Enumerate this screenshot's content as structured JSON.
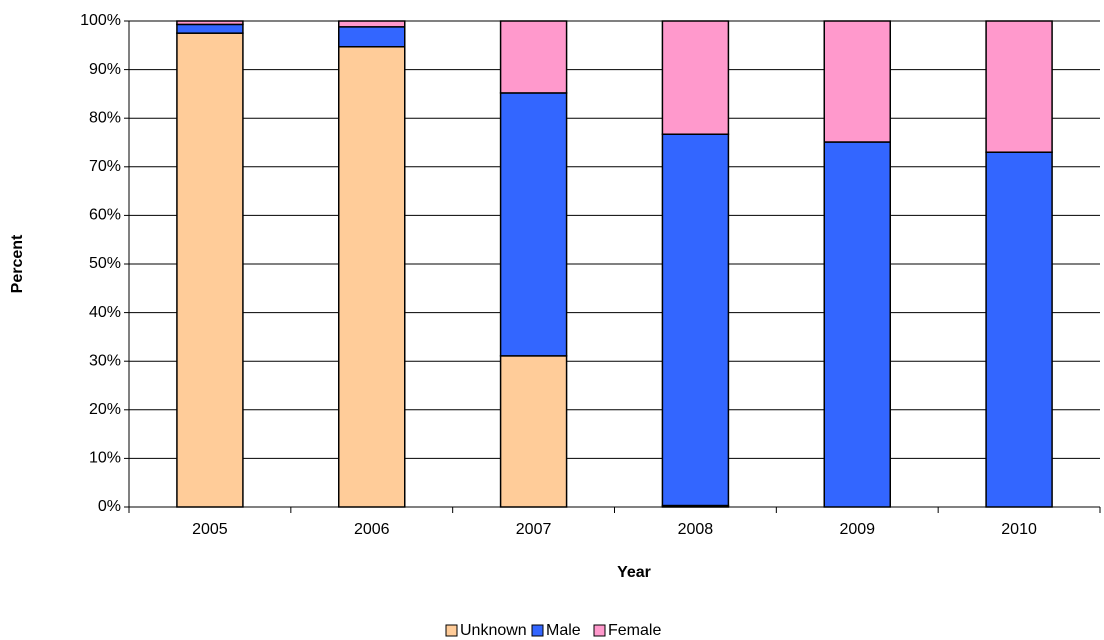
{
  "chart_data": {
    "type": "stacked_bar",
    "x_label": "Year",
    "y_label": "Percent",
    "categories": [
      "2005",
      "2006",
      "2007",
      "2008",
      "2009",
      "2010"
    ],
    "series": [
      {
        "name": "Unknown",
        "color": "#ffcc99",
        "values": [
          97.5,
          94.7,
          31.1,
          0.3,
          0,
          0
        ]
      },
      {
        "name": "Male",
        "color": "#3366ff",
        "values": [
          1.8,
          4.1,
          54.1,
          76.4,
          75.1,
          73.0
        ]
      },
      {
        "name": "Female",
        "color": "#ff99cc",
        "values": [
          0.7,
          1.2,
          14.8,
          23.3,
          24.9,
          27.0
        ]
      }
    ],
    "ylim": [
      0,
      100
    ],
    "yticks": [
      {
        "value": 0,
        "label": "0%"
      },
      {
        "value": 10,
        "label": "10%"
      },
      {
        "value": 20,
        "label": "20%"
      },
      {
        "value": 30,
        "label": "30%"
      },
      {
        "value": 40,
        "label": "40%"
      },
      {
        "value": 50,
        "label": "50%"
      },
      {
        "value": 60,
        "label": "60%"
      },
      {
        "value": 70,
        "label": "70%"
      },
      {
        "value": 80,
        "label": "80%"
      },
      {
        "value": 90,
        "label": "90%"
      },
      {
        "value": 100,
        "label": "100%"
      }
    ],
    "grid": true,
    "legend": "bottom"
  }
}
